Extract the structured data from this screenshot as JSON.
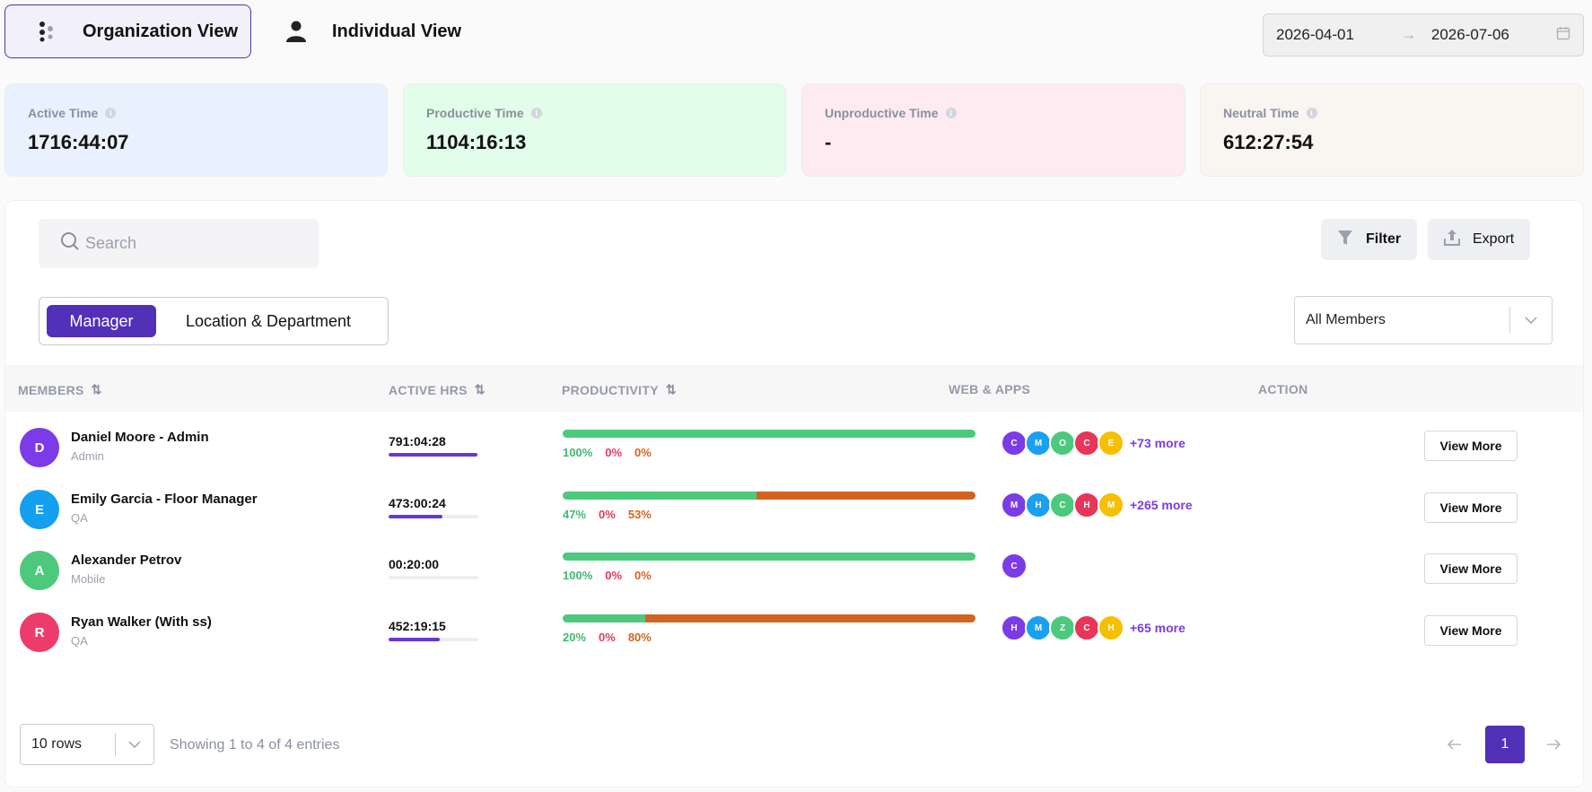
{
  "view_tabs": {
    "organization": "Organization View",
    "individual": "Individual View"
  },
  "date_range": {
    "start": "2026-04-01",
    "separator": "→",
    "end": "2026-07-06"
  },
  "stats": [
    {
      "label": "Active Time",
      "value": "1716:44:07",
      "bg": "#e9f1fe"
    },
    {
      "label": "Productive Time",
      "value": "1104:16:13",
      "bg": "#e2fde9"
    },
    {
      "label": "Unproductive Time",
      "value": "-",
      "bg": "#fdebf1"
    },
    {
      "label": "Neutral Time",
      "value": "612:27:54",
      "bg": "#f9f5f1"
    }
  ],
  "search": {
    "placeholder": "Search"
  },
  "toolbar": {
    "filter": "Filter",
    "export": "Export"
  },
  "grouping": {
    "manager": "Manager",
    "location": "Location & Department"
  },
  "members_filter": {
    "value": "All Members"
  },
  "table": {
    "headers": {
      "members": "MEMBERS",
      "active_hrs": "ACTIVE HRS",
      "productivity": "PRODUCTIVITY",
      "web_apps": "WEB & APPS",
      "action": "ACTION"
    },
    "rows": [
      {
        "initial": "D",
        "avatar_color": "#7b3be6",
        "name": "Daniel Moore - Admin",
        "role": "Admin",
        "active_hrs": "791:04:28",
        "hrs_fraction": 0.99,
        "productive": 100,
        "unproductive": 0,
        "neutral": 0,
        "productive_label": "100%",
        "unproductive_label": "0%",
        "neutral_label": "0%",
        "apps": [
          {
            "l": "C",
            "c": "#7b3be6"
          },
          {
            "l": "M",
            "c": "#1aa0f0"
          },
          {
            "l": "O",
            "c": "#4cc97d"
          },
          {
            "l": "C",
            "c": "#e8355a"
          },
          {
            "l": "E",
            "c": "#f6c000"
          }
        ],
        "more": "+73 more",
        "action": "View More"
      },
      {
        "initial": "E",
        "avatar_color": "#149ff0",
        "name": "Emily Garcia - Floor Manager",
        "role": "QA",
        "active_hrs": "473:00:24",
        "hrs_fraction": 0.6,
        "productive": 47,
        "unproductive": 0,
        "neutral": 53,
        "productive_label": "47%",
        "unproductive_label": "0%",
        "neutral_label": "53%",
        "apps": [
          {
            "l": "M",
            "c": "#7b3be6"
          },
          {
            "l": "H",
            "c": "#1aa0f0"
          },
          {
            "l": "C",
            "c": "#4cc97d"
          },
          {
            "l": "H",
            "c": "#e8355a"
          },
          {
            "l": "M",
            "c": "#f6c000"
          }
        ],
        "more": "+265 more",
        "action": "View More"
      },
      {
        "initial": "A",
        "avatar_color": "#4cc97d",
        "name": "Alexander Petrov",
        "role": "Mobile",
        "active_hrs": "00:20:00",
        "hrs_fraction": 0.0,
        "productive": 100,
        "unproductive": 0,
        "neutral": 0,
        "productive_label": "100%",
        "unproductive_label": "0%",
        "neutral_label": "0%",
        "apps": [
          {
            "l": "C",
            "c": "#7b3be6"
          }
        ],
        "more": "",
        "action": "View More"
      },
      {
        "initial": "R",
        "avatar_color": "#ed3c6b",
        "name": "Ryan Walker (With ss)",
        "role": "QA",
        "active_hrs": "452:19:15",
        "hrs_fraction": 0.57,
        "productive": 20,
        "unproductive": 0,
        "neutral": 80,
        "productive_label": "20%",
        "unproductive_label": "0%",
        "neutral_label": "80%",
        "apps": [
          {
            "l": "H",
            "c": "#7b3be6"
          },
          {
            "l": "M",
            "c": "#1aa0f0"
          },
          {
            "l": "Z",
            "c": "#4cc97d"
          },
          {
            "l": "C",
            "c": "#e8355a"
          },
          {
            "l": "H",
            "c": "#f6c000"
          }
        ],
        "more": "+65 more",
        "action": "View More"
      }
    ]
  },
  "footer": {
    "rows_per_page": "10 rows",
    "showing": "Showing 1 to 4 of 4 entries",
    "page": "1"
  },
  "colors": {
    "accent": "#5230b8",
    "productive": "#4cc97d",
    "unproductive": "#e8355a",
    "neutral": "#d2641f"
  }
}
